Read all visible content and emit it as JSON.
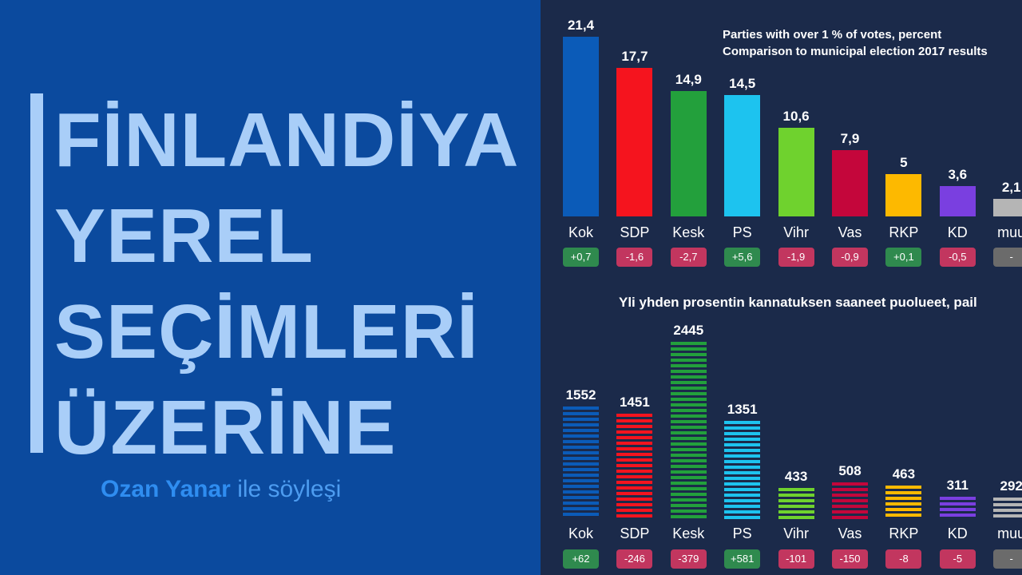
{
  "title": {
    "lines": [
      "FİNLANDİYA",
      "YEREL",
      "SEÇİMLERİ",
      "ÜZERİNE"
    ],
    "byline_name": "Ozan Yanar",
    "byline_rest": " ile söyleşi"
  },
  "colors": {
    "left_bg": "#0b4a9e",
    "right_bg": "#1b2a4a",
    "title_text": "#a9cef8",
    "positive_chip": "#2f8a4e",
    "negative_chip": "#c2365f",
    "neutral_chip": "#6b6b6b"
  },
  "chart_data": [
    {
      "type": "bar",
      "notes": [
        "Parties with over 1 % of votes, percent",
        "Comparison to municipal election 2017 results"
      ],
      "categories": [
        "Kok",
        "SDP",
        "Kesk",
        "PS",
        "Vihr",
        "Vas",
        "RKP",
        "KD",
        "muu"
      ],
      "value_labels": [
        "21,4",
        "17,7",
        "14,9",
        "14,5",
        "10,6",
        "7,9",
        "5",
        "3,6",
        "2,1"
      ],
      "values": [
        21.4,
        17.7,
        14.9,
        14.5,
        10.6,
        7.9,
        5,
        3.6,
        2.1
      ],
      "changes": [
        "+0,7",
        "-1,6",
        "-2,7",
        "+5,6",
        "-1,9",
        "-0,9",
        "+0,1",
        "-0,5",
        "-"
      ],
      "colors": [
        "#0b5bb8",
        "#f5141e",
        "#23a03c",
        "#1dc3ef",
        "#6fd22e",
        "#c4063b",
        "#fdb900",
        "#7a3fe0",
        "#b5b5b5"
      ],
      "ylim": [
        0,
        21.4
      ]
    },
    {
      "type": "bar",
      "notes": [
        "Yli yhden prosentin kannatuksen saaneet puolueet, pail"
      ],
      "categories": [
        "Kok",
        "SDP",
        "Kesk",
        "PS",
        "Vihr",
        "Vas",
        "RKP",
        "KD",
        "muu"
      ],
      "value_labels": [
        "1552",
        "1451",
        "2445",
        "1351",
        "433",
        "508",
        "463",
        "311",
        "292"
      ],
      "values": [
        1552,
        1451,
        2445,
        1351,
        433,
        508,
        463,
        311,
        292
      ],
      "changes": [
        "+62",
        "-246",
        "-379",
        "+581",
        "-101",
        "-150",
        "-8",
        "-5",
        "-"
      ],
      "colors": [
        "#0b5bb8",
        "#f5141e",
        "#23a03c",
        "#1dc3ef",
        "#6fd22e",
        "#c4063b",
        "#fdb900",
        "#7a3fe0",
        "#b5b5b5"
      ],
      "ylim": [
        0,
        2445
      ]
    }
  ]
}
